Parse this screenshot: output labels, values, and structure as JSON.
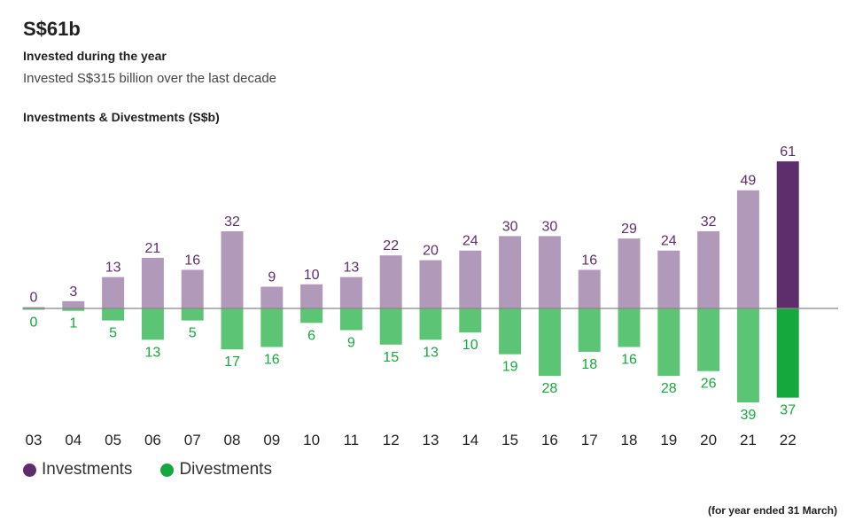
{
  "header": {
    "headline": "S$61b",
    "subtitle": "Invested during the year",
    "caption": "Invested S$315 billion over the last decade"
  },
  "footnote": "(for year ended 31 March)",
  "colors": {
    "investments": "#b19ab9",
    "investments_highlight": "#5e2d6b",
    "divestments": "#5cc475",
    "divestments_highlight": "#15a83c",
    "investments_label": "#5e2d6b",
    "divestments_label": "#15a83c",
    "axis": "#888888"
  },
  "chart_data": {
    "type": "bar",
    "title": "Investments & Divestments (S$b)",
    "categories": [
      "03",
      "04",
      "05",
      "06",
      "07",
      "08",
      "09",
      "10",
      "11",
      "12",
      "13",
      "14",
      "15",
      "16",
      "17",
      "18",
      "19",
      "20",
      "21",
      "22"
    ],
    "series": [
      {
        "name": "Investments",
        "values": [
          0,
          3,
          13,
          21,
          16,
          32,
          9,
          10,
          13,
          22,
          20,
          24,
          30,
          30,
          16,
          29,
          24,
          32,
          49,
          61
        ]
      },
      {
        "name": "Divestments",
        "values": [
          0,
          1,
          5,
          13,
          5,
          17,
          16,
          6,
          9,
          15,
          13,
          10,
          19,
          28,
          18,
          16,
          28,
          26,
          39,
          37
        ]
      }
    ],
    "highlight_category": "22",
    "divestments_plotted_below_axis": true,
    "legend_position": "bottom-left",
    "grid": false
  }
}
